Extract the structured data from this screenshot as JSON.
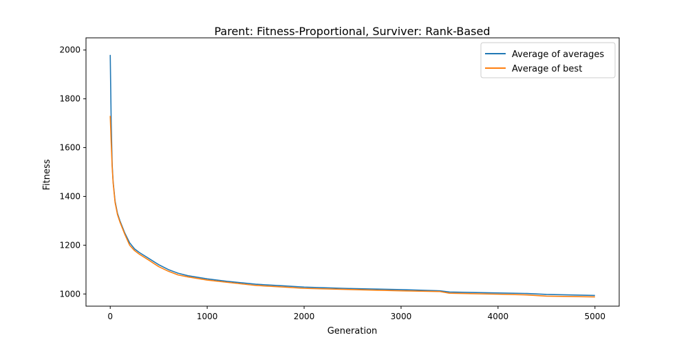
{
  "chart_data": {
    "type": "line",
    "title": "Parent: Fitness-Proportional, Surviver: Rank-Based",
    "xlabel": "Generation",
    "ylabel": "Fitness",
    "xlim": [
      -250,
      5250
    ],
    "ylim": [
      950,
      2050
    ],
    "xticks": [
      0,
      1000,
      2000,
      3000,
      4000,
      5000
    ],
    "yticks": [
      1000,
      1200,
      1400,
      1600,
      1800,
      2000
    ],
    "grid": false,
    "legend_position": "top-right",
    "series": [
      {
        "name": "Average of averages",
        "color": "#1f77b4",
        "x": [
          0,
          10,
          20,
          30,
          50,
          75,
          100,
          150,
          200,
          250,
          300,
          400,
          500,
          600,
          700,
          800,
          1000,
          1200,
          1500,
          1800,
          2000,
          2500,
          3000,
          3400,
          3500,
          4000,
          4300,
          4500,
          5000
        ],
        "y": [
          1980,
          1700,
          1530,
          1460,
          1380,
          1330,
          1300,
          1250,
          1210,
          1185,
          1170,
          1145,
          1120,
          1100,
          1085,
          1075,
          1062,
          1052,
          1040,
          1033,
          1028,
          1022,
          1018,
          1013,
          1008,
          1004,
          1002,
          998,
          994
        ]
      },
      {
        "name": "Average of best",
        "color": "#ff7f0e",
        "x": [
          0,
          10,
          20,
          30,
          50,
          75,
          100,
          150,
          200,
          250,
          300,
          400,
          500,
          600,
          700,
          800,
          1000,
          1200,
          1500,
          1800,
          2000,
          2500,
          3000,
          3400,
          3500,
          4000,
          4300,
          4500,
          5000
        ],
        "y": [
          1730,
          1620,
          1520,
          1455,
          1375,
          1325,
          1295,
          1245,
          1200,
          1178,
          1163,
          1138,
          1112,
          1093,
          1078,
          1070,
          1057,
          1048,
          1035,
          1028,
          1023,
          1018,
          1013,
          1010,
          1003,
          999,
          996,
          991,
          988
        ]
      }
    ]
  }
}
